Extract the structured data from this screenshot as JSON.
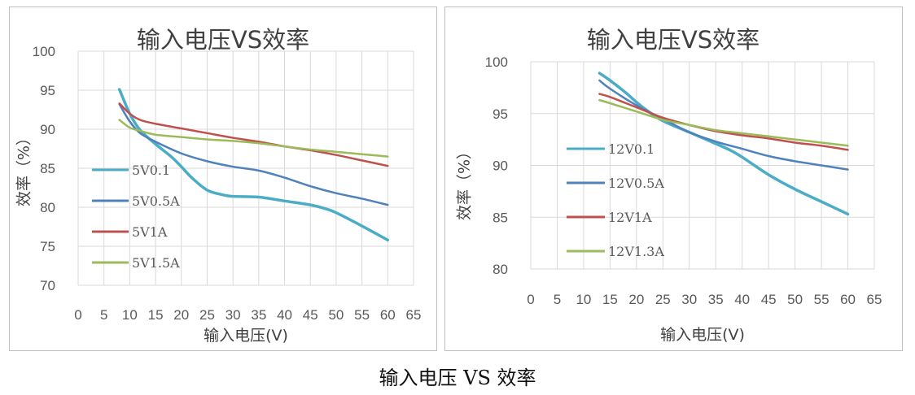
{
  "caption": "输入电压 VS 效率",
  "chart_data": [
    {
      "type": "line",
      "title": "输入电压VS效率",
      "xlabel": "输入电压(V)",
      "ylabel": "效率（%）",
      "xlim": [
        0,
        65
      ],
      "ylim": [
        70,
        100
      ],
      "xticks": [
        0,
        5,
        10,
        15,
        20,
        25,
        30,
        35,
        40,
        45,
        50,
        55,
        60,
        65
      ],
      "yticks": [
        70,
        75,
        80,
        85,
        90,
        95,
        100
      ],
      "legend_position": "left",
      "series": [
        {
          "name": "5V0.1",
          "color": "#4bacc6",
          "x": [
            8,
            10,
            12,
            15,
            18,
            20,
            22,
            25,
            28,
            30,
            35,
            40,
            45,
            48,
            50,
            55,
            60
          ],
          "y": [
            95.1,
            92,
            89.9,
            88.1,
            86.5,
            85.2,
            83.8,
            82.2,
            81.6,
            81.4,
            81.3,
            80.8,
            80.3,
            79.8,
            79.3,
            77.6,
            75.8
          ]
        },
        {
          "name": "5V0.5A",
          "color": "#4f81bd",
          "x": [
            8,
            10,
            12,
            15,
            20,
            25,
            30,
            35,
            40,
            45,
            50,
            55,
            60
          ],
          "y": [
            93.2,
            91,
            89.5,
            88.4,
            86.9,
            85.9,
            85.2,
            84.7,
            83.8,
            82.7,
            81.8,
            81.1,
            80.3
          ]
        },
        {
          "name": "5V1A",
          "color": "#c0504d",
          "x": [
            8,
            10,
            12,
            15,
            20,
            25,
            30,
            35,
            40,
            45,
            50,
            55,
            60
          ],
          "y": [
            93.3,
            92,
            91.2,
            90.7,
            90.1,
            89.5,
            88.9,
            88.4,
            87.8,
            87.3,
            86.7,
            86,
            85.3
          ]
        },
        {
          "name": "5V1.5A",
          "color": "#9bbb59",
          "x": [
            8,
            10,
            12,
            15,
            20,
            25,
            30,
            35,
            40,
            45,
            50,
            55,
            60
          ],
          "y": [
            91.2,
            90.2,
            89.8,
            89.3,
            89,
            88.7,
            88.5,
            88.2,
            87.8,
            87.4,
            87.1,
            86.8,
            86.5
          ]
        }
      ]
    },
    {
      "type": "line",
      "title": "输入电压VS效率",
      "xlabel": "输入电压(V)",
      "ylabel": "效率（%）",
      "xlim": [
        0,
        65
      ],
      "ylim": [
        80,
        100
      ],
      "xticks": [
        0,
        5,
        10,
        15,
        20,
        25,
        30,
        35,
        40,
        45,
        50,
        55,
        60,
        65
      ],
      "yticks": [
        80,
        85,
        90,
        95,
        100
      ],
      "legend_position": "left",
      "series": [
        {
          "name": "12V0.1",
          "color": "#4bacc6",
          "x": [
            13,
            15,
            18,
            20,
            22,
            25,
            30,
            35,
            38,
            40,
            45,
            50,
            55,
            60
          ],
          "y": [
            98.9,
            98.2,
            97,
            96.1,
            95.3,
            94.3,
            93.2,
            92.1,
            91.4,
            90.8,
            89.1,
            87.7,
            86.5,
            85.3
          ]
        },
        {
          "name": "12V0.5A",
          "color": "#4f81bd",
          "x": [
            13,
            15,
            20,
            25,
            30,
            35,
            40,
            45,
            50,
            55,
            60
          ],
          "y": [
            98.2,
            97.4,
            95.8,
            94.5,
            93.2,
            92.3,
            91.6,
            90.9,
            90.4,
            90,
            89.6
          ]
        },
        {
          "name": "12V1A",
          "color": "#c0504d",
          "x": [
            13,
            15,
            20,
            25,
            30,
            35,
            40,
            45,
            50,
            55,
            60
          ],
          "y": [
            96.9,
            96.6,
            95.6,
            94.6,
            93.9,
            93.3,
            92.9,
            92.6,
            92.2,
            91.9,
            91.5
          ]
        },
        {
          "name": "12V1.3A",
          "color": "#9bbb59",
          "x": [
            13,
            15,
            20,
            25,
            30,
            35,
            40,
            45,
            50,
            55,
            60
          ],
          "y": [
            96.3,
            96,
            95.2,
            94.4,
            93.9,
            93.4,
            93.1,
            92.8,
            92.5,
            92.2,
            91.9
          ]
        }
      ]
    }
  ]
}
